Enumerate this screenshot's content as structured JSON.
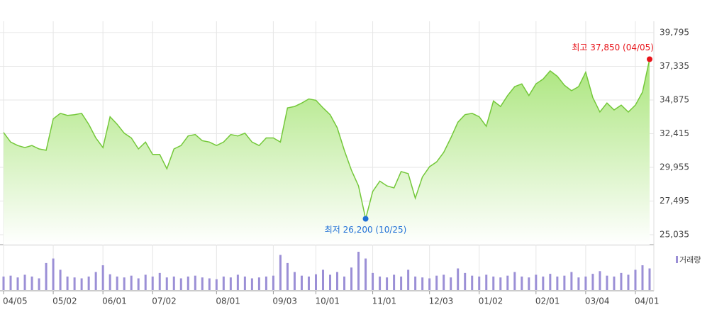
{
  "chart_data": {
    "type": "line",
    "categories": [
      "04/05",
      null,
      null,
      null,
      null,
      null,
      null,
      "05/02",
      null,
      null,
      null,
      null,
      null,
      null,
      "06/01",
      null,
      null,
      null,
      null,
      null,
      null,
      "07/02",
      null,
      null,
      null,
      null,
      null,
      null,
      null,
      null,
      "08/01",
      null,
      null,
      null,
      null,
      null,
      null,
      null,
      "09/03",
      null,
      null,
      null,
      null,
      null,
      "10/01",
      null,
      null,
      null,
      null,
      null,
      null,
      null,
      "11/01",
      null,
      null,
      null,
      null,
      null,
      null,
      null,
      "12/03",
      null,
      null,
      null,
      null,
      null,
      null,
      "01/02",
      null,
      null,
      null,
      null,
      null,
      null,
      null,
      "02/01",
      null,
      null,
      null,
      null,
      null,
      null,
      "03/04",
      null,
      null,
      null,
      null,
      null,
      null,
      "04/01",
      null,
      null
    ],
    "values": [
      32500,
      31800,
      31550,
      31400,
      31550,
      31300,
      31200,
      33500,
      33900,
      33750,
      33800,
      33900,
      33100,
      32100,
      31400,
      33650,
      33100,
      32450,
      32100,
      31300,
      31800,
      30900,
      30900,
      29850,
      31300,
      31550,
      32250,
      32350,
      31900,
      31800,
      31550,
      31800,
      32350,
      32250,
      32450,
      31800,
      31550,
      32100,
      32100,
      31800,
      34300,
      34400,
      34650,
      34950,
      34850,
      34300,
      33800,
      32850,
      31200,
      29750,
      28600,
      26200,
      28200,
      28950,
      28600,
      28450,
      29650,
      29500,
      27700,
      29250,
      30000,
      30350,
      31050,
      32100,
      33250,
      33800,
      33900,
      33650,
      32950,
      34800,
      34400,
      35200,
      35850,
      36050,
      35200,
      36050,
      36400,
      37000,
      36600,
      35950,
      35550,
      35850,
      36900,
      35050,
      34000,
      34650,
      34150,
      34500,
      34000,
      34500,
      35450,
      37850
    ],
    "color": "#74c83a",
    "ylim": [
      24310,
      40620
    ],
    "yticks": [
      {
        "value": 25035,
        "label": "25,035"
      },
      {
        "value": 27495,
        "label": "27,495"
      },
      {
        "value": 29955,
        "label": "29,955"
      },
      {
        "value": 32415,
        "label": "32,415"
      },
      {
        "value": 34875,
        "label": "34,875"
      },
      {
        "value": 37335,
        "label": "37,335"
      },
      {
        "value": 39795,
        "label": "39,795"
      }
    ],
    "grid": true,
    "annotations": [
      {
        "text": "최고 37,850 (04/05)",
        "value": 37850,
        "color": "#e8141a"
      },
      {
        "text": "최저 26,200 (10/25)",
        "value": 26200,
        "color": "#1f6fd6"
      }
    ],
    "volume": {
      "name": "거래량",
      "color": "#9b8fd6",
      "values": [
        30,
        32,
        28,
        34,
        30,
        26,
        60,
        70,
        45,
        30,
        28,
        26,
        30,
        40,
        55,
        35,
        30,
        28,
        32,
        26,
        34,
        30,
        38,
        28,
        30,
        26,
        30,
        32,
        28,
        26,
        24,
        30,
        28,
        34,
        30,
        26,
        28,
        30,
        32,
        78,
        60,
        40,
        32,
        30,
        35,
        45,
        34,
        40,
        30,
        50,
        85,
        70,
        38,
        30,
        28,
        34,
        30,
        45,
        30,
        28,
        26,
        32,
        34,
        28,
        48,
        38,
        32,
        30,
        34,
        30,
        28,
        32,
        40,
        30,
        28,
        34,
        30,
        36,
        30,
        32,
        40,
        28,
        30,
        36,
        42,
        32,
        30,
        38,
        34,
        45,
        55,
        48
      ]
    }
  }
}
